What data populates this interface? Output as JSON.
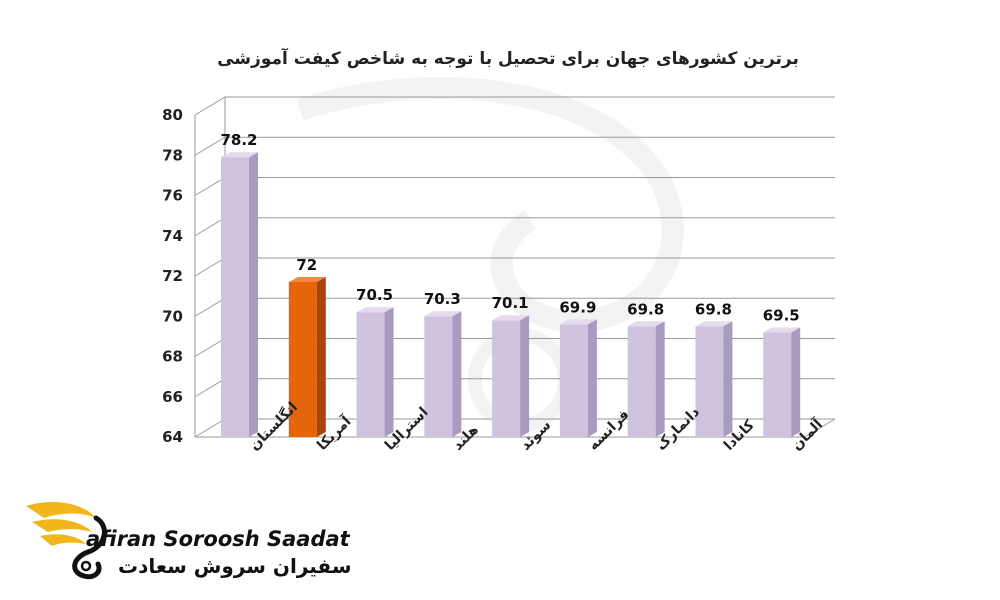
{
  "chart_data": {
    "type": "bar",
    "title": "برترین کشورهای جهان برای تحصیل با توجه به شاخص کیفت آموزشی",
    "categories": [
      "انگلستان",
      "آمریکا",
      "استرالیا",
      "هلند",
      "سوئد",
      "فرانسه",
      "دانمارک",
      "کانادا",
      "آلمان"
    ],
    "values": [
      78.2,
      72,
      70.5,
      70.3,
      70.1,
      69.9,
      69.8,
      69.8,
      69.5
    ],
    "value_labels": [
      "78.2",
      "72",
      "70.5",
      "70.3",
      "70.1",
      "69.9",
      "69.8",
      "69.8",
      "69.5"
    ],
    "ylim": [
      64,
      80
    ],
    "yticks": [
      "64",
      "66",
      "68",
      "70",
      "72",
      "74",
      "76",
      "78",
      "80"
    ],
    "grid": true,
    "colors": {
      "default_bar": "#cfc3e0",
      "default_bar_side": "#a99bbf",
      "default_bar_top": "#e4dcee",
      "highlight_bar": "#e5650c",
      "highlight_bar_side": "#a9450a",
      "highlight_bar_top": "#f08a40",
      "highlight_index": 1,
      "grid": "#9a9a9a"
    }
  },
  "brand": {
    "name_en": "afiran Soroosh Saadat",
    "name_fa": "سفیران سروش سعادت",
    "logo": "golden-wing-s-logo",
    "accent": "#f2b51c"
  }
}
